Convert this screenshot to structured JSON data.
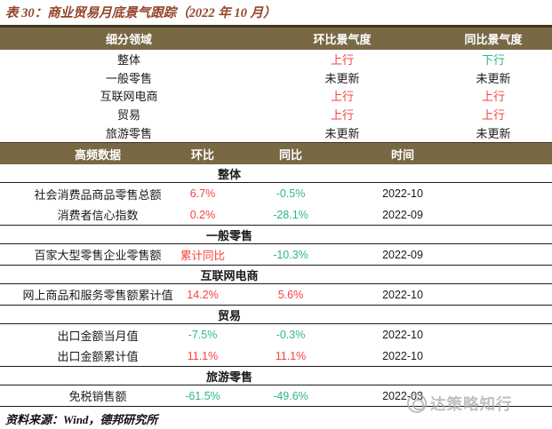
{
  "colors": {
    "band_bg": "#796844",
    "band_text": "#ffffff",
    "title_color": "#93452a",
    "up_red": "#fb3f3f",
    "down_green": "#2eba7e",
    "text_black": "#1a1a1a",
    "watermark_gray": "#a7abaf"
  },
  "title": "表 30：商业贸易月底景气跟踪（2022 年 10 月）",
  "summary_table": {
    "headers": [
      "细分领域",
      "环比景气度",
      "同比景气度"
    ],
    "rows": [
      {
        "label": "整体",
        "mom": {
          "text": "上行",
          "tone": "up"
        },
        "yoy": {
          "text": "下行",
          "tone": "down"
        }
      },
      {
        "label": "一般零售",
        "mom": {
          "text": "未更新",
          "tone": "flat"
        },
        "yoy": {
          "text": "未更新",
          "tone": "flat"
        }
      },
      {
        "label": "互联网电商",
        "mom": {
          "text": "上行",
          "tone": "up"
        },
        "yoy": {
          "text": "上行",
          "tone": "up"
        }
      },
      {
        "label": "贸易",
        "mom": {
          "text": "上行",
          "tone": "up"
        },
        "yoy": {
          "text": "上行",
          "tone": "up"
        }
      },
      {
        "label": "旅游零售",
        "mom": {
          "text": "未更新",
          "tone": "flat"
        },
        "yoy": {
          "text": "未更新",
          "tone": "flat"
        }
      }
    ]
  },
  "detail_table": {
    "headers": [
      "高频数据",
      "环比",
      "同比",
      "时间"
    ],
    "sections": [
      {
        "name": "整体",
        "rows": [
          {
            "label": "社会消费品商品零售总额",
            "mom": {
              "text": "6.7%",
              "tone": "up"
            },
            "yoy": {
              "text": "-0.5%",
              "tone": "down"
            },
            "date": "2022-10"
          },
          {
            "label": "消费者信心指数",
            "mom": {
              "text": "0.2%",
              "tone": "up"
            },
            "yoy": {
              "text": "-28.1%",
              "tone": "down"
            },
            "date": "2022-09"
          }
        ]
      },
      {
        "name": "一般零售",
        "rows": [
          {
            "label": "百家大型零售企业零售额",
            "mom": {
              "text": "累计同比",
              "tone": "up"
            },
            "yoy": {
              "text": "-10.3%",
              "tone": "down"
            },
            "date": "2022-09"
          }
        ]
      },
      {
        "name": "互联网电商",
        "rows": [
          {
            "label": "网上商品和服务零售额累计值",
            "mom": {
              "text": "14.2%",
              "tone": "up"
            },
            "yoy": {
              "text": "5.6%",
              "tone": "up"
            },
            "date": "2022-10"
          }
        ]
      },
      {
        "name": "贸易",
        "rows": [
          {
            "label": "出口金额当月值",
            "mom": {
              "text": "-7.5%",
              "tone": "down"
            },
            "yoy": {
              "text": "-0.3%",
              "tone": "down"
            },
            "date": "2022-10"
          },
          {
            "label": "出口金额累计值",
            "mom": {
              "text": "11.1%",
              "tone": "up"
            },
            "yoy": {
              "text": "11.1%",
              "tone": "up"
            },
            "date": "2022-10"
          }
        ]
      },
      {
        "name": "旅游零售",
        "rows": [
          {
            "label": "免税销售额",
            "mom": {
              "text": "-61.5%",
              "tone": "down"
            },
            "yoy": {
              "text": "-49.6%",
              "tone": "down"
            },
            "date": "2022-03"
          }
        ]
      }
    ]
  },
  "footer": {
    "source": "资料来源：Wind，德邦研究所"
  },
  "watermark": {
    "text": "达策略知行",
    "logo": "circle-logo"
  }
}
